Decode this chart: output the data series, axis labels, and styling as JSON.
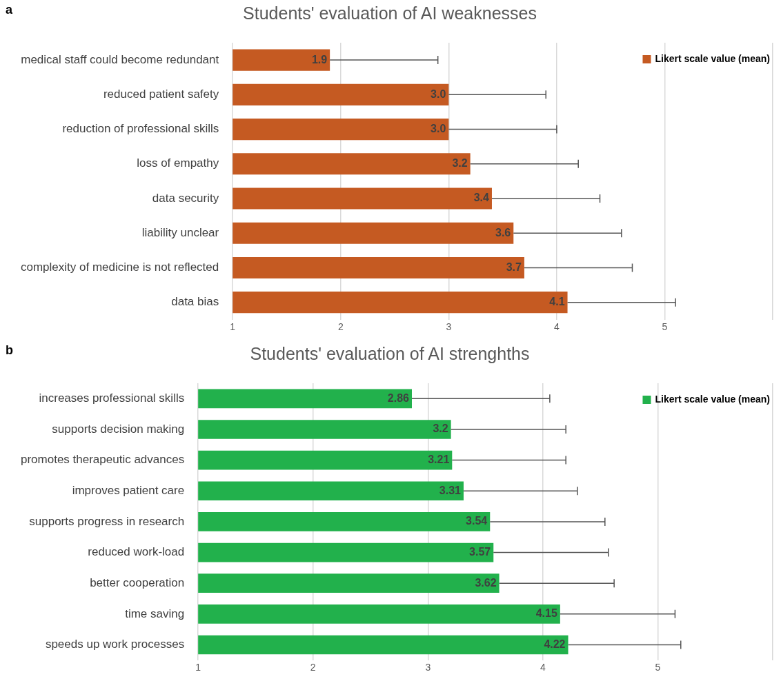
{
  "chart_data": [
    {
      "type": "bar",
      "orientation": "horizontal",
      "title": "Students' evaluation of AI weaknesses",
      "annotations": [
        "a"
      ],
      "categories": [
        "medical staff could become redundant",
        "reduced patient safety",
        "reduction of professional skills",
        "loss of empathy",
        "data security",
        "liability unclear",
        "complexity of medicine is not reflected",
        "data bias"
      ],
      "series": [
        {
          "name": "Likert scale value (mean)",
          "color": "#c55a22",
          "values": [
            1.9,
            3.0,
            3.0,
            3.2,
            3.4,
            3.6,
            3.7,
            4.1
          ],
          "value_labels": [
            "1.9",
            "3.0",
            "3.0",
            "3.2",
            "3.4",
            "3.6",
            "3.7",
            "4.1"
          ],
          "errors": [
            [
              1.9,
              2.9
            ],
            [
              3.0,
              3.9
            ],
            [
              3.0,
              4.0
            ],
            [
              3.2,
              4.2
            ],
            [
              3.4,
              4.4
            ],
            [
              3.6,
              4.6
            ],
            [
              3.7,
              4.7
            ],
            [
              4.1,
              5.1
            ]
          ]
        }
      ],
      "xlim": [
        1,
        6
      ],
      "xticks": [
        1,
        2,
        3,
        4,
        5,
        {
          "value": 6,
          "label": null
        }
      ],
      "grid": "x",
      "legend": "top right"
    },
    {
      "type": "bar",
      "orientation": "horizontal",
      "title": "Students' evaluation of AI strenghths",
      "annotations": [
        "b"
      ],
      "categories": [
        "increases professional skills",
        "supports decision making",
        "promotes therapeutic advances",
        "improves patient care",
        "supports progress in research",
        "reduced work-load",
        "better cooperation",
        "time saving",
        "speeds up work processes"
      ],
      "series": [
        {
          "name": "Likert scale value (mean)",
          "color": "#22b14c",
          "values": [
            2.86,
            3.2,
            3.21,
            3.31,
            3.54,
            3.57,
            3.62,
            4.15,
            4.22
          ],
          "errors": [
            [
              2.86,
              4.06
            ],
            [
              3.2,
              4.2
            ],
            [
              3.21,
              4.2
            ],
            [
              3.31,
              4.3
            ],
            [
              3.54,
              4.54
            ],
            [
              3.57,
              4.57
            ],
            [
              3.62,
              4.62
            ],
            [
              4.15,
              5.15
            ],
            [
              4.22,
              5.2
            ]
          ]
        }
      ],
      "xlim": [
        1,
        6
      ],
      "xticks": [
        1,
        2,
        3,
        4,
        5,
        {
          "value": 6,
          "label": null
        }
      ],
      "grid": "x",
      "legend": "top right",
      "data_labels": true
    }
  ]
}
